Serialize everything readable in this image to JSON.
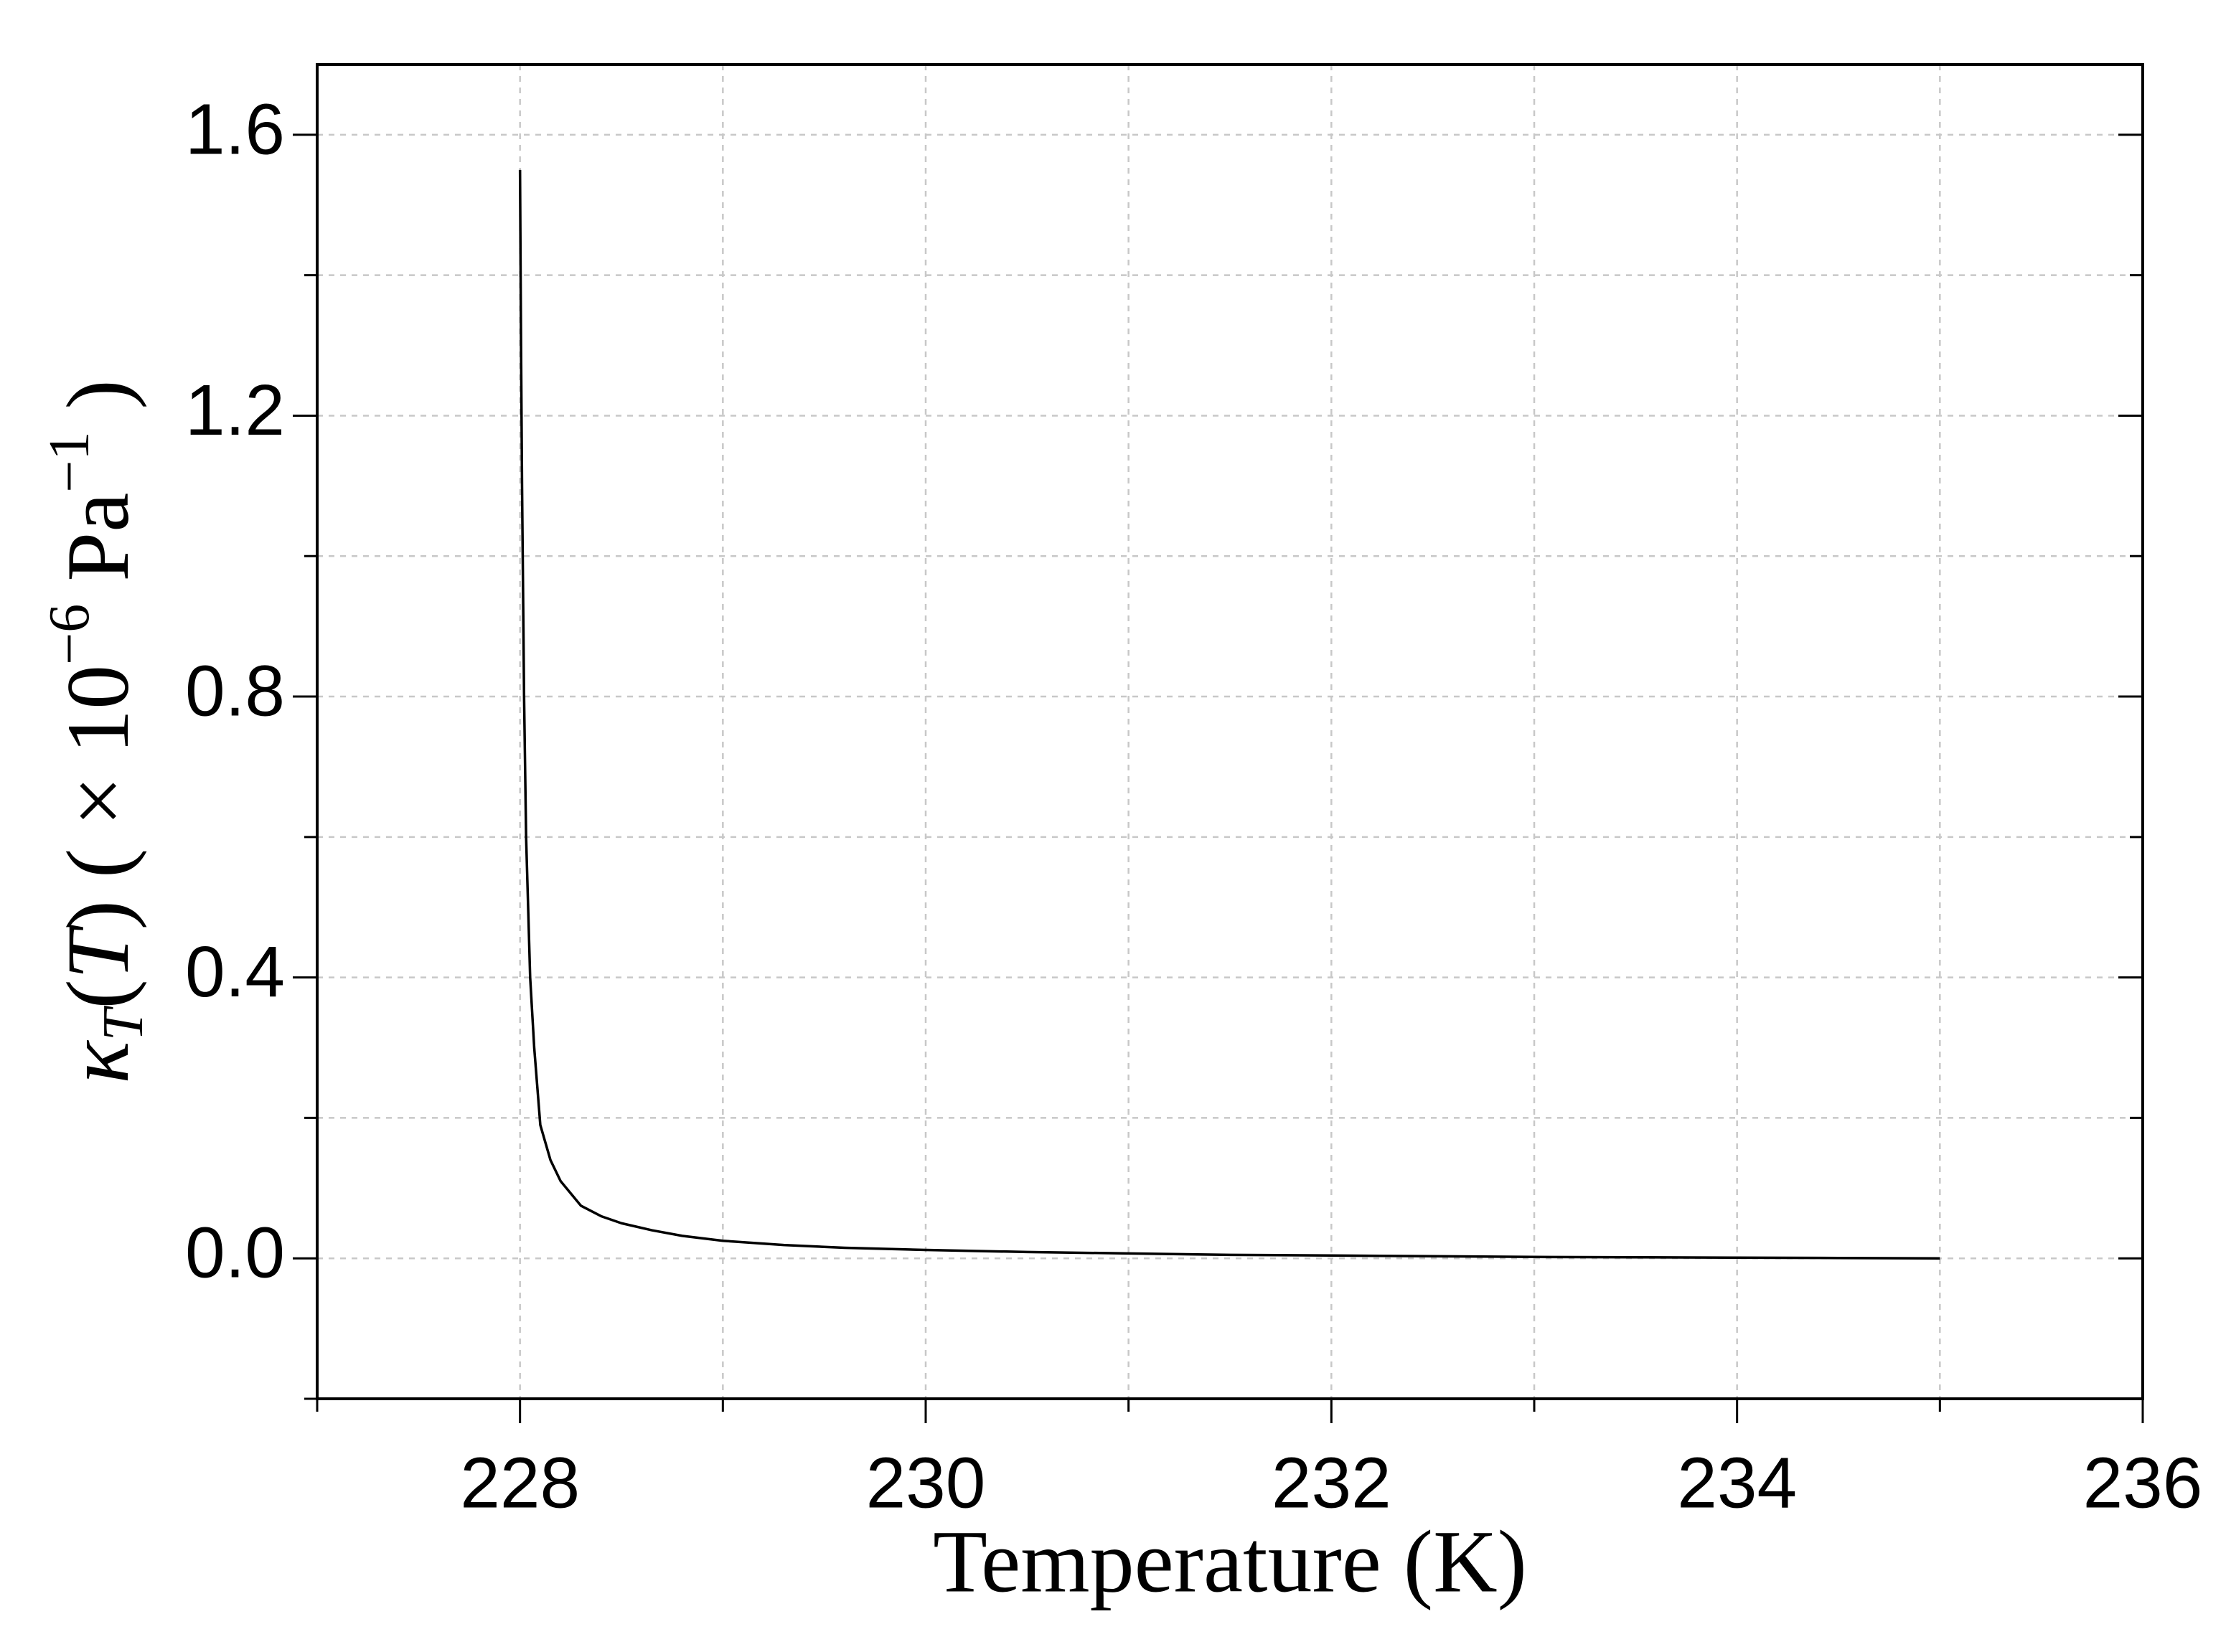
{
  "chart_data": {
    "type": "line",
    "xlabel": "Temperature (K)",
    "ylabel": [
      "κ",
      "T",
      "(",
      "T",
      ")",
      " ( × 10",
      "−6",
      " Pa",
      "−1",
      " )"
    ],
    "x": [
      228.0,
      228.005,
      228.01,
      228.015,
      228.02,
      228.03,
      228.05,
      228.07,
      228.1,
      228.15,
      228.2,
      228.3,
      228.4,
      228.5,
      228.65,
      228.8,
      229.0,
      229.3,
      229.6,
      230.0,
      230.5,
      231.0,
      231.5,
      232.0,
      232.5,
      233.0,
      233.5,
      234.0,
      234.5,
      235.0
    ],
    "series": [
      {
        "color": "#000000",
        "values": [
          1.55,
          1.3,
          1.1,
          0.95,
          0.8,
          0.6,
          0.4,
          0.3,
          0.19,
          0.14,
          0.11,
          0.075,
          0.06,
          0.05,
          0.04,
          0.032,
          0.025,
          0.019,
          0.015,
          0.012,
          0.009,
          0.007,
          0.005,
          0.004,
          0.003,
          0.002,
          0.0015,
          0.001,
          0.0005,
          0.0
        ]
      }
    ],
    "xlim": [
      227,
      236
    ],
    "xticks": [
      228,
      230,
      232,
      234,
      236
    ],
    "x_minor_ticks": [
      227,
      229,
      231,
      233,
      235
    ],
    "ylim": [
      -0.2,
      1.7
    ],
    "yticks": [
      {
        "value": 0,
        "label": "0.0"
      },
      0.4,
      0.8,
      1.2,
      1.6
    ],
    "y_minor_ticks": [
      -0.2,
      0.2,
      0.6,
      1.0,
      1.4
    ],
    "grid": true
  }
}
